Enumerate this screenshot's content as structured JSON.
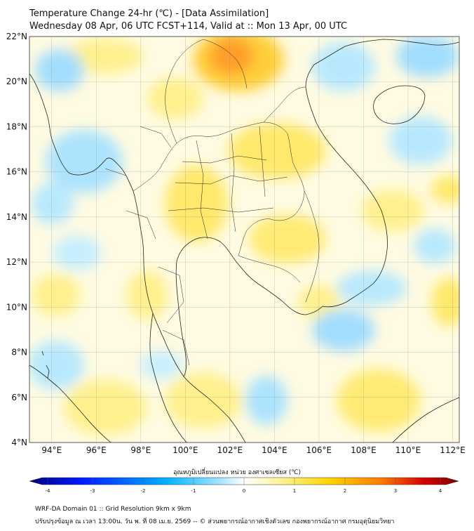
{
  "title_line1": "Temperature Change 24-hr (℃) - [Data Assimilation]",
  "title_line2": "Wednesday 08 Apr, 06 UTC FCST+114, Valid at :: Mon 13 Apr, 00 UTC",
  "lat_labels": [
    "22°N",
    "20°N",
    "18°N",
    "16°N",
    "14°N",
    "12°N",
    "10°N",
    "8°N",
    "6°N",
    "4°N"
  ],
  "lon_labels": [
    "94°E",
    "96°E",
    "98°E",
    "100°E",
    "102°E",
    "104°E",
    "106°E",
    "108°E",
    "110°E",
    "112°E"
  ],
  "lat_range": [
    4,
    22
  ],
  "lon_range": [
    93,
    112.3
  ],
  "colorbar": {
    "title": "อุณหภูมิเปลี่ยนแปลง หน่วย องศาเซลเซียส (℃)",
    "ticks": [
      "-4",
      "-3",
      "-2",
      "-1",
      "0",
      "1",
      "2",
      "3",
      "4"
    ],
    "min": -4,
    "max": 4,
    "colors": [
      "#00007f",
      "#0019ff",
      "#00b2ff",
      "#9fe3ff",
      "#ffffff",
      "#fff59a",
      "#ffd400",
      "#ff7a00",
      "#d40000",
      "#7f0000"
    ]
  },
  "footer_line1": "WRF-DA Domain 01 :: Grid Resolution 9km x 9km",
  "footer_line2": "ปรับปรุงข้อมูล ณ เวลา 13:00น. วัน พ. ที่ 08 เม.ย. 2569 -- © ส่วนพยากรณ์อากาศเชิงตัวเลข กองพยากรณ์อากาศ กรมอุตุนิยมวิทยา"
}
